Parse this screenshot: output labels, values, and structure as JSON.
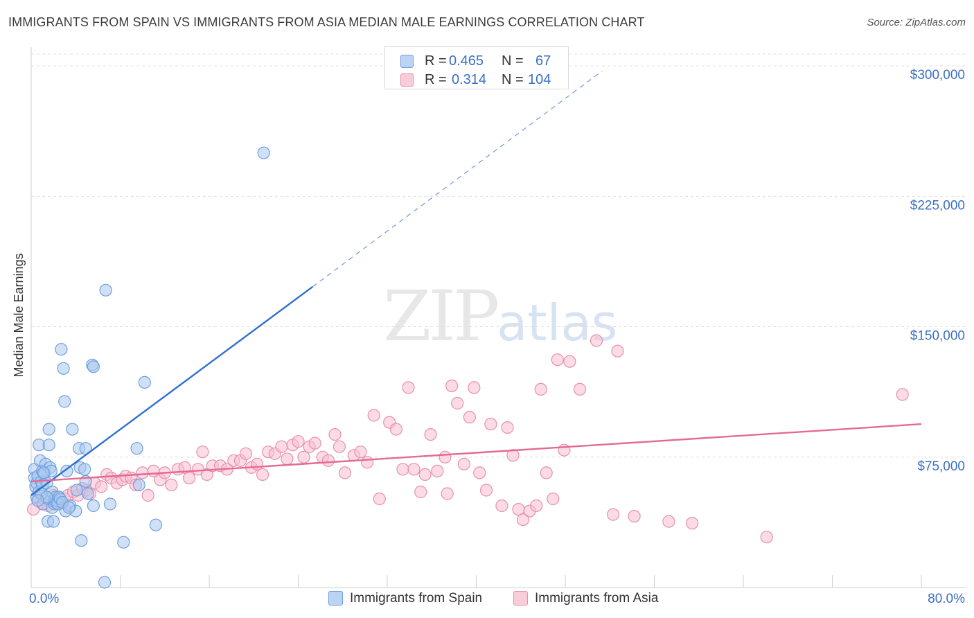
{
  "header": {
    "title": "IMMIGRANTS FROM SPAIN VS IMMIGRANTS FROM ASIA MEDIAN MALE EARNINGS CORRELATION CHART",
    "source": "Source: ZipAtlas.com"
  },
  "watermark": {
    "zip": "ZIP",
    "atlas": "atlas"
  },
  "legend": {
    "rows": [
      {
        "r_label": "R =",
        "r_value": "0.465",
        "n_label": "N =",
        "n_value": "67",
        "color": "#a9c8ef"
      },
      {
        "r_label": "R =",
        "r_value": "0.314",
        "n_label": "N =",
        "n_value": "104",
        "color": "#f5b8cc"
      }
    ]
  },
  "bottom_legend": {
    "items": [
      {
        "label": "Immigrants from Spain",
        "color": "#a9c8ef"
      },
      {
        "label": "Immigrants from Asia",
        "color": "#f5b8cc"
      }
    ]
  },
  "colors": {
    "spain_fill": "#a9c8ef",
    "spain_stroke": "#6f9fdc",
    "spain_line": "#2f6fcf",
    "asia_fill": "#f7c0d1",
    "asia_stroke": "#ea8eab",
    "asia_line": "#e46a93",
    "tick_label": "#3a6fc4",
    "grid": "#dedede"
  },
  "chart_data": {
    "type": "scatter",
    "title": "IMMIGRANTS FROM SPAIN VS IMMIGRANTS FROM ASIA MEDIAN MALE EARNINGS CORRELATION CHART",
    "xlabel": "",
    "ylabel": "Median Male Earnings",
    "xlim": [
      0,
      80
    ],
    "ylim": [
      0,
      310000
    ],
    "x_tick_labels": [
      "0.0%",
      "80.0%"
    ],
    "y_ticks": [
      75000,
      150000,
      225000,
      300000
    ],
    "y_tick_labels": [
      "$75,000",
      "$150,000",
      "$225,000",
      "$300,000"
    ],
    "grid": true,
    "legend_position": "top-center",
    "series": [
      {
        "name": "Immigrants from Spain",
        "r": 0.465,
        "n": 67,
        "trend": {
          "x0": 0,
          "y0": 53000,
          "x1": 25.3,
          "y1": 173000,
          "dashed_to_x": 51.3,
          "dashed_to_y": 297000
        },
        "points": [
          [
            0.3,
            68000
          ],
          [
            0.3,
            63000
          ],
          [
            0.4,
            58000
          ],
          [
            0.5,
            60000
          ],
          [
            0.5,
            52000
          ],
          [
            0.6,
            64000
          ],
          [
            0.7,
            82000
          ],
          [
            0.7,
            55000
          ],
          [
            0.8,
            73000
          ],
          [
            0.9,
            61000
          ],
          [
            1.0,
            59000
          ],
          [
            1.0,
            67000
          ],
          [
            1.1,
            48000
          ],
          [
            1.2,
            66000
          ],
          [
            1.3,
            71000
          ],
          [
            1.4,
            60000
          ],
          [
            1.5,
            51000
          ],
          [
            1.5,
            38000
          ],
          [
            1.6,
            82000
          ],
          [
            1.6,
            91000
          ],
          [
            1.7,
            69000
          ],
          [
            1.8,
            67000
          ],
          [
            1.9,
            46000
          ],
          [
            1.9,
            55000
          ],
          [
            2.0,
            38000
          ],
          [
            2.1,
            50000
          ],
          [
            2.1,
            48000
          ],
          [
            2.2,
            52000
          ],
          [
            2.2,
            49000
          ],
          [
            2.3,
            50000
          ],
          [
            2.4,
            48000
          ],
          [
            2.5,
            52000
          ],
          [
            2.6,
            51000
          ],
          [
            2.7,
            137000
          ],
          [
            2.9,
            126000
          ],
          [
            3.0,
            107000
          ],
          [
            3.1,
            44000
          ],
          [
            3.2,
            67000
          ],
          [
            3.5,
            47000
          ],
          [
            3.7,
            91000
          ],
          [
            4.0,
            44000
          ],
          [
            4.1,
            56000
          ],
          [
            4.3,
            80000
          ],
          [
            4.4,
            69000
          ],
          [
            4.5,
            27000
          ],
          [
            4.8,
            68000
          ],
          [
            4.9,
            61000
          ],
          [
            4.9,
            80000
          ],
          [
            5.1,
            54000
          ],
          [
            5.5,
            128000
          ],
          [
            5.6,
            127000
          ],
          [
            5.6,
            47000
          ],
          [
            6.6,
            3000
          ],
          [
            6.7,
            171000
          ],
          [
            7.1,
            48000
          ],
          [
            8.3,
            26000
          ],
          [
            9.5,
            80000
          ],
          [
            9.7,
            59000
          ],
          [
            10.2,
            118000
          ],
          [
            11.2,
            36000
          ],
          [
            20.9,
            250000
          ],
          [
            1.1,
            66000
          ],
          [
            0.9,
            54000
          ],
          [
            1.4,
            52000
          ],
          [
            2.8,
            49000
          ],
          [
            3.4,
            46000
          ],
          [
            0.6,
            50000
          ]
        ]
      },
      {
        "name": "Immigrants from Asia",
        "r": 0.314,
        "n": 104,
        "trend": {
          "x0": 0,
          "y0": 61000,
          "x1": 80,
          "y1": 94000
        },
        "points": [
          [
            0.2,
            45000
          ],
          [
            0.5,
            52000
          ],
          [
            1.0,
            48000
          ],
          [
            1.3,
            50000
          ],
          [
            1.5,
            47000
          ],
          [
            2.0,
            53000
          ],
          [
            2.5,
            48000
          ],
          [
            3.0,
            51000
          ],
          [
            3.3,
            53000
          ],
          [
            3.8,
            55000
          ],
          [
            4.2,
            53000
          ],
          [
            4.6,
            57000
          ],
          [
            5.0,
            56000
          ],
          [
            5.3,
            54000
          ],
          [
            5.7,
            60000
          ],
          [
            6.3,
            58000
          ],
          [
            6.8,
            65000
          ],
          [
            7.2,
            63000
          ],
          [
            7.7,
            60000
          ],
          [
            8.2,
            62000
          ],
          [
            8.5,
            64000
          ],
          [
            9.0,
            63000
          ],
          [
            9.4,
            59000
          ],
          [
            10.0,
            66000
          ],
          [
            10.5,
            53000
          ],
          [
            11.0,
            67000
          ],
          [
            11.6,
            62000
          ],
          [
            12.0,
            66000
          ],
          [
            12.6,
            59000
          ],
          [
            13.2,
            68000
          ],
          [
            13.8,
            69000
          ],
          [
            14.2,
            63000
          ],
          [
            15.0,
            68000
          ],
          [
            15.4,
            78000
          ],
          [
            15.8,
            65000
          ],
          [
            16.3,
            70000
          ],
          [
            17.0,
            70000
          ],
          [
            17.6,
            68000
          ],
          [
            18.2,
            73000
          ],
          [
            18.8,
            73000
          ],
          [
            19.3,
            77000
          ],
          [
            19.8,
            69000
          ],
          [
            20.3,
            71000
          ],
          [
            20.8,
            65000
          ],
          [
            21.3,
            78000
          ],
          [
            21.9,
            77000
          ],
          [
            22.5,
            81000
          ],
          [
            23.0,
            74000
          ],
          [
            23.5,
            82000
          ],
          [
            24.0,
            84000
          ],
          [
            24.5,
            75000
          ],
          [
            25.0,
            81000
          ],
          [
            25.5,
            83000
          ],
          [
            26.2,
            75000
          ],
          [
            26.7,
            73000
          ],
          [
            27.3,
            88000
          ],
          [
            27.7,
            81000
          ],
          [
            28.2,
            66000
          ],
          [
            29.0,
            76000
          ],
          [
            29.6,
            78000
          ],
          [
            30.2,
            72000
          ],
          [
            30.8,
            99000
          ],
          [
            31.3,
            51000
          ],
          [
            32.2,
            95000
          ],
          [
            32.8,
            91000
          ],
          [
            33.4,
            68000
          ],
          [
            33.9,
            115000
          ],
          [
            34.4,
            68000
          ],
          [
            35.0,
            55000
          ],
          [
            35.4,
            65000
          ],
          [
            35.9,
            88000
          ],
          [
            36.5,
            67000
          ],
          [
            37.2,
            75000
          ],
          [
            37.4,
            54000
          ],
          [
            37.8,
            116000
          ],
          [
            38.3,
            106000
          ],
          [
            38.9,
            71000
          ],
          [
            39.4,
            98000
          ],
          [
            39.8,
            115000
          ],
          [
            40.3,
            66000
          ],
          [
            40.9,
            56000
          ],
          [
            41.3,
            94000
          ],
          [
            42.3,
            47000
          ],
          [
            42.8,
            92000
          ],
          [
            43.3,
            76000
          ],
          [
            43.8,
            45000
          ],
          [
            44.2,
            39000
          ],
          [
            44.8,
            44000
          ],
          [
            45.4,
            47000
          ],
          [
            45.8,
            114000
          ],
          [
            46.3,
            66000
          ],
          [
            46.9,
            51000
          ],
          [
            47.3,
            131000
          ],
          [
            47.9,
            79000
          ],
          [
            48.4,
            130000
          ],
          [
            49.3,
            114000
          ],
          [
            50.8,
            142000
          ],
          [
            52.3,
            42000
          ],
          [
            52.7,
            136000
          ],
          [
            54.2,
            41000
          ],
          [
            57.3,
            38000
          ],
          [
            59.4,
            37000
          ],
          [
            66.1,
            29000
          ],
          [
            78.3,
            111000
          ]
        ]
      }
    ]
  }
}
